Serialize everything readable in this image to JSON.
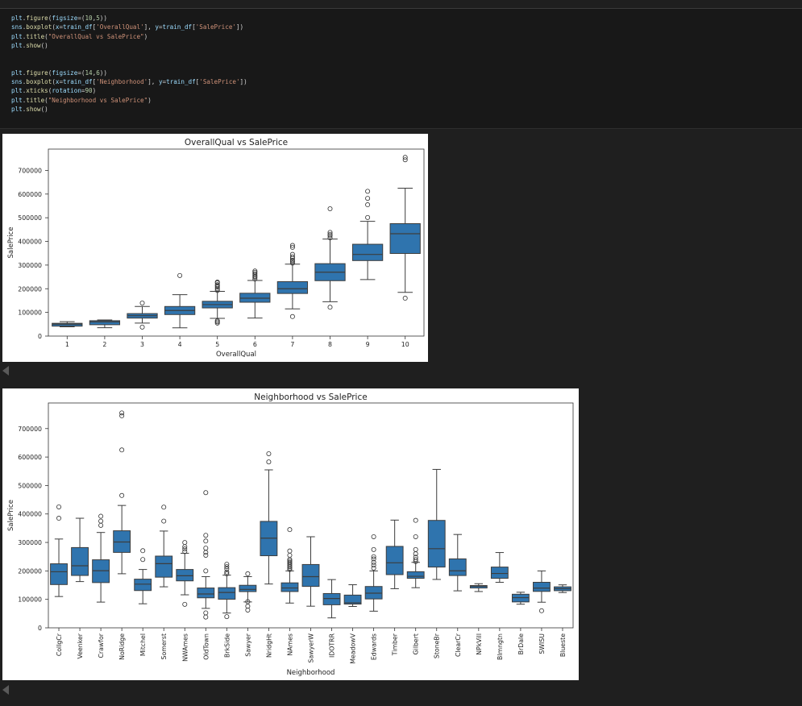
{
  "code_cell": {
    "lines": [
      [
        {
          "t": "plt",
          "c": "id"
        },
        {
          "t": ".",
          "c": "p"
        },
        {
          "t": "figure",
          "c": "fn"
        },
        {
          "t": "(",
          "c": "p"
        },
        {
          "t": "figsize",
          "c": "id"
        },
        {
          "t": "=(",
          "c": "p"
        },
        {
          "t": "10",
          "c": "num"
        },
        {
          "t": ",",
          "c": "p"
        },
        {
          "t": "5",
          "c": "num"
        },
        {
          "t": "))",
          "c": "p"
        }
      ],
      [
        {
          "t": "sns",
          "c": "id"
        },
        {
          "t": ".",
          "c": "p"
        },
        {
          "t": "boxplot",
          "c": "fn"
        },
        {
          "t": "(",
          "c": "p"
        },
        {
          "t": "x",
          "c": "id"
        },
        {
          "t": "=",
          "c": "p"
        },
        {
          "t": "train_df",
          "c": "id"
        },
        {
          "t": "[",
          "c": "p"
        },
        {
          "t": "'OverallQual'",
          "c": "str"
        },
        {
          "t": "], ",
          "c": "p"
        },
        {
          "t": "y",
          "c": "id"
        },
        {
          "t": "=",
          "c": "p"
        },
        {
          "t": "train_df",
          "c": "id"
        },
        {
          "t": "[",
          "c": "p"
        },
        {
          "t": "'SalePrice'",
          "c": "str"
        },
        {
          "t": "])",
          "c": "p"
        }
      ],
      [
        {
          "t": "plt",
          "c": "id"
        },
        {
          "t": ".",
          "c": "p"
        },
        {
          "t": "title",
          "c": "fn"
        },
        {
          "t": "(",
          "c": "p"
        },
        {
          "t": "\"OverallQual vs SalePrice\"",
          "c": "str"
        },
        {
          "t": ")",
          "c": "p"
        }
      ],
      [
        {
          "t": "plt",
          "c": "id"
        },
        {
          "t": ".",
          "c": "p"
        },
        {
          "t": "show",
          "c": "fn"
        },
        {
          "t": "()",
          "c": "p"
        }
      ],
      [],
      [],
      [
        {
          "t": "plt",
          "c": "id"
        },
        {
          "t": ".",
          "c": "p"
        },
        {
          "t": "figure",
          "c": "fn"
        },
        {
          "t": "(",
          "c": "p"
        },
        {
          "t": "figsize",
          "c": "id"
        },
        {
          "t": "=(",
          "c": "p"
        },
        {
          "t": "14",
          "c": "num"
        },
        {
          "t": ",",
          "c": "p"
        },
        {
          "t": "6",
          "c": "num"
        },
        {
          "t": "))",
          "c": "p"
        }
      ],
      [
        {
          "t": "sns",
          "c": "id"
        },
        {
          "t": ".",
          "c": "p"
        },
        {
          "t": "boxplot",
          "c": "fn"
        },
        {
          "t": "(",
          "c": "p"
        },
        {
          "t": "x",
          "c": "id"
        },
        {
          "t": "=",
          "c": "p"
        },
        {
          "t": "train_df",
          "c": "id"
        },
        {
          "t": "[",
          "c": "p"
        },
        {
          "t": "'Neighborhood'",
          "c": "str"
        },
        {
          "t": "], ",
          "c": "p"
        },
        {
          "t": "y",
          "c": "id"
        },
        {
          "t": "=",
          "c": "p"
        },
        {
          "t": "train_df",
          "c": "id"
        },
        {
          "t": "[",
          "c": "p"
        },
        {
          "t": "'SalePrice'",
          "c": "str"
        },
        {
          "t": "])",
          "c": "p"
        }
      ],
      [
        {
          "t": "plt",
          "c": "id"
        },
        {
          "t": ".",
          "c": "p"
        },
        {
          "t": "xticks",
          "c": "fn"
        },
        {
          "t": "(",
          "c": "p"
        },
        {
          "t": "rotation",
          "c": "id"
        },
        {
          "t": "=",
          "c": "p"
        },
        {
          "t": "90",
          "c": "num"
        },
        {
          "t": ")",
          "c": "p"
        }
      ],
      [
        {
          "t": "plt",
          "c": "id"
        },
        {
          "t": ".",
          "c": "p"
        },
        {
          "t": "title",
          "c": "fn"
        },
        {
          "t": "(",
          "c": "p"
        },
        {
          "t": "\"Neighborhood vs SalePrice\"",
          "c": "str"
        },
        {
          "t": ")",
          "c": "p"
        }
      ],
      [
        {
          "t": "plt",
          "c": "id"
        },
        {
          "t": ".",
          "c": "p"
        },
        {
          "t": "show",
          "c": "fn"
        },
        {
          "t": "()",
          "c": "p"
        }
      ]
    ]
  },
  "colors": {
    "box_fill": "#2f74ae",
    "line": "#3d3d3d",
    "background": "#1f1f1f"
  },
  "output": {
    "scroll_left_icon": "triangle-left-icon"
  },
  "chart_data": [
    {
      "type": "box",
      "title": "OverallQual vs SalePrice",
      "xlabel": "OverallQual",
      "ylabel": "SalePrice",
      "ylim": [
        0,
        790000
      ],
      "yticks": [
        0,
        100000,
        200000,
        300000,
        400000,
        500000,
        600000,
        700000
      ],
      "categories": [
        "1",
        "2",
        "3",
        "4",
        "5",
        "6",
        "7",
        "8",
        "9",
        "10"
      ],
      "boxes": [
        {
          "whislo": 39300,
          "q1": 42000,
          "med": 50150,
          "q3": 54000,
          "whishi": 61000,
          "fliers": []
        },
        {
          "whislo": 35311,
          "q1": 48000,
          "med": 60000,
          "q3": 65000,
          "whishi": 68000,
          "fliers": []
        },
        {
          "whislo": 55000,
          "q1": 76000,
          "med": 86250,
          "q3": 95000,
          "whishi": 125000,
          "fliers": [
            37900,
            139600
          ]
        },
        {
          "whislo": 34900,
          "q1": 91000,
          "med": 108000,
          "q3": 125000,
          "whishi": 175000,
          "fliers": [
            256000
          ]
        },
        {
          "whislo": 75000,
          "q1": 119000,
          "med": 133000,
          "q3": 147000,
          "whishi": 189000,
          "fliers": [
            55000,
            60000,
            64500,
            193000,
            200000,
            207000,
            213000,
            217000,
            225000,
            228000
          ]
        },
        {
          "whislo": 76000,
          "q1": 143000,
          "med": 160000,
          "q3": 181000,
          "whishi": 235000,
          "fliers": [
            241000,
            248000,
            252000,
            258000,
            264000,
            270000,
            275000
          ]
        },
        {
          "whislo": 115000,
          "q1": 180000,
          "med": 200000,
          "q3": 230000,
          "whishi": 304000,
          "fliers": [
            82500,
            308000,
            315000,
            320000,
            328000,
            335000,
            345000,
            375000,
            383000
          ]
        },
        {
          "whislo": 145000,
          "q1": 234000,
          "med": 269750,
          "q3": 306000,
          "whishi": 410000,
          "fliers": [
            122000,
            415000,
            424000,
            430000,
            438000,
            538000
          ]
        },
        {
          "whislo": 239000,
          "q1": 319000,
          "med": 345000,
          "q3": 388000,
          "whishi": 485000,
          "fliers": [
            501000,
            555000,
            582000,
            611657
          ]
        },
        {
          "whislo": 184750,
          "q1": 349000,
          "med": 432390,
          "q3": 475000,
          "whishi": 625000,
          "fliers": [
            160000,
            745000,
            755000
          ]
        }
      ]
    },
    {
      "type": "box",
      "title": "Neighborhood vs SalePrice",
      "xlabel": "Neighborhood",
      "ylabel": "SalePrice",
      "ylim": [
        0,
        790000
      ],
      "yticks": [
        0,
        100000,
        200000,
        300000,
        400000,
        500000,
        600000,
        700000
      ],
      "categories": [
        "CollgCr",
        "Veenker",
        "Crawfor",
        "NoRidge",
        "Mitchel",
        "Somerst",
        "NWAmes",
        "OldTown",
        "BrkSide",
        "Sawyer",
        "NridgHt",
        "NAmes",
        "SawyerW",
        "IDOTRR",
        "MeadowV",
        "Edwards",
        "Timber",
        "Gilbert",
        "StoneBr",
        "ClearCr",
        "NPkVill",
        "Blmngtn",
        "BrDale",
        "SWISU",
        "Blueste"
      ],
      "boxes": [
        {
          "whislo": 110000,
          "q1": 152000,
          "med": 197000,
          "q3": 225000,
          "whishi": 312000,
          "fliers": [
            385000,
            424870
          ]
        },
        {
          "whislo": 162500,
          "q1": 184000,
          "med": 218000,
          "q3": 282000,
          "whishi": 385000,
          "fliers": []
        },
        {
          "whislo": 90350,
          "q1": 159000,
          "med": 200624,
          "q3": 239000,
          "whishi": 335000,
          "fliers": [
            360000,
            375000,
            392000
          ]
        },
        {
          "whislo": 190000,
          "q1": 265000,
          "med": 301500,
          "q3": 341000,
          "whishi": 430000,
          "fliers": [
            465000,
            625000,
            745000,
            755000
          ]
        },
        {
          "whislo": 84500,
          "q1": 131000,
          "med": 153500,
          "q3": 171000,
          "whishi": 205000,
          "fliers": [
            240000,
            271000
          ]
        },
        {
          "whislo": 144152,
          "q1": 177975,
          "med": 225500,
          "q3": 252000,
          "whishi": 340000,
          "fliers": [
            375000,
            424000
          ]
        },
        {
          "whislo": 116000,
          "q1": 165000,
          "med": 182900,
          "q3": 205000,
          "whishi": 262000,
          "fliers": [
            82500,
            268000,
            277000,
            285000,
            299800
          ]
        },
        {
          "whislo": 68400,
          "q1": 105450,
          "med": 119000,
          "q3": 140000,
          "whishi": 180000,
          "fliers": [
            37900,
            52500,
            200000,
            255000,
            265000,
            280000,
            305000,
            325000,
            475000
          ]
        },
        {
          "whislo": 52000,
          "q1": 100500,
          "med": 124300,
          "q3": 141175,
          "whishi": 185000,
          "fliers": [
            39300,
            190000,
            196000,
            207000,
            215000,
            223500
          ]
        },
        {
          "whislo": 91000,
          "q1": 127250,
          "med": 135000,
          "q3": 149462,
          "whishi": 180000,
          "fliers": [
            62383,
            76000,
            92000,
            190000
          ]
        },
        {
          "whislo": 154000,
          "q1": 253293,
          "med": 315000,
          "q3": 374000,
          "whishi": 555000,
          "fliers": [
            582933,
            611657
          ]
        },
        {
          "whislo": 87000,
          "q1": 127500,
          "med": 140000,
          "q3": 158000,
          "whishi": 200000,
          "fliers": [
            205000,
            210000,
            215000,
            220000,
            225000,
            230000,
            235000,
            240000,
            255000,
            270000,
            345000
          ]
        },
        {
          "whislo": 76000,
          "q1": 145500,
          "med": 179900,
          "q3": 222500,
          "whishi": 320000,
          "fliers": []
        },
        {
          "whislo": 34900,
          "q1": 81000,
          "med": 103000,
          "q3": 120500,
          "whishi": 169500,
          "fliers": []
        },
        {
          "whislo": 75000,
          "q1": 83500,
          "med": 88000,
          "q3": 115000,
          "whishi": 151400,
          "fliers": []
        },
        {
          "whislo": 58500,
          "q1": 101500,
          "med": 121750,
          "q3": 145225,
          "whishi": 200000,
          "fliers": [
            210000,
            220000,
            230000,
            242000,
            250000,
            275000,
            320000
          ]
        },
        {
          "whislo": 137500,
          "q1": 186900,
          "med": 228475,
          "q3": 286115,
          "whishi": 378500,
          "fliers": []
        },
        {
          "whislo": 141000,
          "q1": 174000,
          "med": 181000,
          "q3": 197200,
          "whishi": 230000,
          "fliers": [
            233000,
            240000,
            248000,
            260000,
            275000,
            320000,
            377500
          ]
        },
        {
          "whislo": 170000,
          "q1": 213500,
          "med": 278000,
          "q3": 377426,
          "whishi": 556581,
          "fliers": []
        },
        {
          "whislo": 130000,
          "q1": 183750,
          "med": 200250,
          "q3": 242225,
          "whishi": 328000,
          "fliers": []
        },
        {
          "whislo": 127500,
          "q1": 140000,
          "med": 146000,
          "q3": 148500,
          "whishi": 155000,
          "fliers": []
        },
        {
          "whislo": 159895,
          "q1": 174000,
          "med": 191000,
          "q3": 213490,
          "whishi": 264561,
          "fliers": []
        },
        {
          "whislo": 83000,
          "q1": 91000,
          "med": 106000,
          "q3": 118000,
          "whishi": 125000,
          "fliers": []
        },
        {
          "whislo": 90000,
          "q1": 128000,
          "med": 139500,
          "q3": 160000,
          "whishi": 200000,
          "fliers": [
            60000
          ]
        },
        {
          "whislo": 124000,
          "q1": 130500,
          "med": 137500,
          "q3": 144000,
          "whishi": 151000,
          "fliers": []
        }
      ]
    }
  ]
}
